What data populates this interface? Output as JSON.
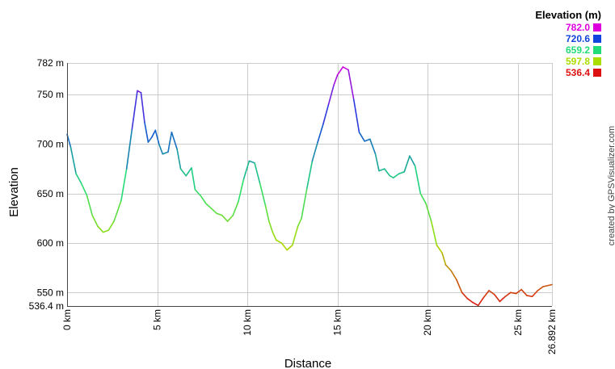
{
  "chart_data": {
    "type": "line",
    "title": "",
    "xlabel": "Distance",
    "ylabel": "Elevation",
    "xlim": [
      0,
      26.892
    ],
    "ylim": [
      536.4,
      782.0
    ],
    "x_unit": "km",
    "y_unit": "m",
    "x_tick_labels": [
      "0 km",
      "5 km",
      "10 km",
      "15 km",
      "20 km",
      "25 km",
      "26.892 km"
    ],
    "x_tick_values": [
      0,
      5,
      10,
      15,
      20,
      25,
      26.892
    ],
    "y_tick_labels": [
      "782 m",
      "750 m",
      "700 m",
      "650 m",
      "600 m",
      "550 m",
      "536.4 m"
    ],
    "y_tick_values": [
      782,
      750,
      700,
      650,
      600,
      550,
      536.4
    ],
    "grid": true,
    "legend": {
      "position": "top-right",
      "title": "Elevation (m)",
      "entries": [
        {
          "label": "782.0",
          "color": "#dd00dd"
        },
        {
          "label": "720.6",
          "color": "#1144dd"
        },
        {
          "label": "659.2",
          "color": "#22dd77"
        },
        {
          "label": "597.8",
          "color": "#aadd00"
        },
        {
          "label": "536.4",
          "color": "#dd1111"
        }
      ]
    },
    "credit": "created by GPSVisualizer.com",
    "series": [
      {
        "x": [
          0,
          0.2,
          0.5,
          0.8,
          1.1,
          1.4,
          1.7,
          2.0,
          2.3,
          2.6,
          3.0,
          3.3,
          3.6,
          3.9,
          4.1,
          4.3,
          4.5,
          4.7,
          4.9,
          5.1,
          5.3,
          5.6,
          5.8,
          6.1,
          6.3,
          6.6,
          6.9,
          7.1,
          7.4,
          7.7,
          8.0,
          8.3,
          8.6,
          8.9,
          9.2,
          9.5,
          9.8,
          10.1,
          10.4,
          10.7,
          11.0,
          11.2,
          11.4,
          11.6,
          11.9,
          12.2,
          12.5,
          12.8,
          13.0,
          13.3,
          13.6,
          13.9,
          14.2,
          14.5,
          14.8,
          15.0,
          15.3,
          15.6,
          15.9,
          16.2,
          16.5,
          16.8,
          17.1,
          17.3,
          17.6,
          17.9,
          18.1,
          18.4,
          18.7,
          19.0,
          19.3,
          19.6,
          19.9,
          20.2,
          20.5,
          20.8,
          21.0,
          21.3,
          21.6,
          21.9,
          22.2,
          22.5,
          22.8,
          23.1,
          23.4,
          23.7,
          24.0,
          24.3,
          24.6,
          24.9,
          25.2,
          25.5,
          25.8,
          26.1,
          26.4,
          26.892
        ],
        "y": [
          710,
          697,
          670,
          660,
          648,
          628,
          617,
          611,
          613,
          622,
          643,
          675,
          715,
          754,
          752,
          722,
          702,
          707,
          714,
          700,
          690,
          692,
          712,
          695,
          675,
          668,
          676,
          654,
          648,
          640,
          635,
          630,
          628,
          622,
          628,
          642,
          665,
          683,
          681,
          660,
          638,
          622,
          611,
          603,
          600,
          593,
          598,
          617,
          625,
          655,
          683,
          702,
          720,
          740,
          760,
          770,
          778,
          775,
          745,
          712,
          703,
          705,
          690,
          673,
          675,
          668,
          666,
          670,
          672,
          688,
          678,
          650,
          640,
          622,
          598,
          590,
          578,
          572,
          563,
          550,
          544,
          540,
          537,
          545,
          552,
          548,
          541,
          546,
          550,
          549,
          553,
          547,
          546,
          552,
          556,
          558
        ]
      }
    ]
  }
}
